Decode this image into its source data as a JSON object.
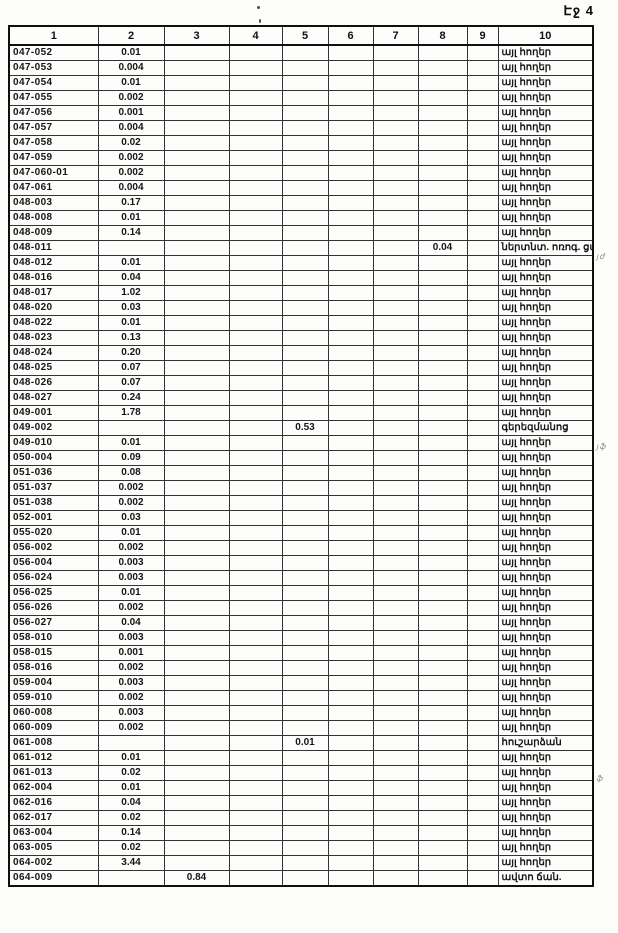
{
  "page": {
    "label": "Էջ 4"
  },
  "table": {
    "headers": [
      "1",
      "2",
      "3",
      "4",
      "5",
      "6",
      "7",
      "8",
      "9",
      "10"
    ],
    "rows": [
      {
        "cells": [
          "047-052",
          "0.01",
          "",
          "",
          "",
          "",
          "",
          "",
          "",
          "այլ հողեր"
        ]
      },
      {
        "cells": [
          "047-053",
          "0.004",
          "",
          "",
          "",
          "",
          "",
          "",
          "",
          "այլ հողեր"
        ]
      },
      {
        "cells": [
          "047-054",
          "0.01",
          "",
          "",
          "",
          "",
          "",
          "",
          "",
          "այլ հողեր"
        ]
      },
      {
        "cells": [
          "047-055",
          "0.002",
          "",
          "",
          "",
          "",
          "",
          "",
          "",
          "այլ հողեր"
        ]
      },
      {
        "cells": [
          "047-056",
          "0.001",
          "",
          "",
          "",
          "",
          "",
          "",
          "",
          "այլ հողեր"
        ]
      },
      {
        "cells": [
          "047-057",
          "0.004",
          "",
          "",
          "",
          "",
          "",
          "",
          "",
          "այլ հողեր"
        ]
      },
      {
        "cells": [
          "047-058",
          "0.02",
          "",
          "",
          "",
          "",
          "",
          "",
          "",
          "այլ հողեր"
        ]
      },
      {
        "cells": [
          "047-059",
          "0.002",
          "",
          "",
          "",
          "",
          "",
          "",
          "",
          "այլ հողեր"
        ]
      },
      {
        "cells": [
          "047-060-01",
          "0.002",
          "",
          "",
          "",
          "",
          "",
          "",
          "",
          "այլ հողեր"
        ]
      },
      {
        "cells": [
          "047-061",
          "0.004",
          "",
          "",
          "",
          "",
          "",
          "",
          "",
          "այլ հողեր"
        ]
      },
      {
        "cells": [
          "048-003",
          "0.17",
          "",
          "",
          "",
          "",
          "",
          "",
          "",
          "այլ հողեր"
        ]
      },
      {
        "cells": [
          "048-008",
          "0.01",
          "",
          "",
          "",
          "",
          "",
          "",
          "",
          "այլ հողեր"
        ]
      },
      {
        "cells": [
          "048-009",
          "0.14",
          "",
          "",
          "",
          "",
          "",
          "",
          "",
          "այլ հողեր"
        ]
      },
      {
        "cells": [
          "048-011",
          "",
          "",
          "",
          "",
          "",
          "",
          "0.04",
          "",
          "ներտնտ. ոռոգ. ցանց"
        ]
      },
      {
        "cells": [
          "048-012",
          "0.01",
          "",
          "",
          "",
          "",
          "",
          "",
          "",
          "այլ հողեր"
        ]
      },
      {
        "cells": [
          "048-016",
          "0.04",
          "",
          "",
          "",
          "",
          "",
          "",
          "",
          "այլ հողեր"
        ]
      },
      {
        "cells": [
          "048-017",
          "1.02",
          "",
          "",
          "",
          "",
          "",
          "",
          "",
          "այլ հողեր"
        ]
      },
      {
        "cells": [
          "048-020",
          "0.03",
          "",
          "",
          "",
          "",
          "",
          "",
          "",
          "այլ հողեր"
        ]
      },
      {
        "cells": [
          "048-022",
          "0.01",
          "",
          "",
          "",
          "",
          "",
          "",
          "",
          "այլ հողեր"
        ]
      },
      {
        "cells": [
          "048-023",
          "0.13",
          "",
          "",
          "",
          "",
          "",
          "",
          "",
          "այլ հողեր"
        ]
      },
      {
        "cells": [
          "048-024",
          "0.20",
          "",
          "",
          "",
          "",
          "",
          "",
          "",
          "այլ հողեր"
        ]
      },
      {
        "cells": [
          "048-025",
          "0.07",
          "",
          "",
          "",
          "",
          "",
          "",
          "",
          "այլ հողեր"
        ]
      },
      {
        "cells": [
          "048-026",
          "0.07",
          "",
          "",
          "",
          "",
          "",
          "",
          "",
          "այլ հողեր"
        ]
      },
      {
        "cells": [
          "048-027",
          "0.24",
          "",
          "",
          "",
          "",
          "",
          "",
          "",
          "այլ հողեր"
        ]
      },
      {
        "cells": [
          "049-001",
          "1.78",
          "",
          "",
          "",
          "",
          "",
          "",
          "",
          "այլ հողեր"
        ]
      },
      {
        "cells": [
          "049-002",
          "",
          "",
          "",
          "0.53",
          "",
          "",
          "",
          "",
          "գերեզմանոց"
        ]
      },
      {
        "cells": [
          "049-010",
          "0.01",
          "",
          "",
          "",
          "",
          "",
          "",
          "",
          "այլ հողեր"
        ]
      },
      {
        "cells": [
          "050-004",
          "0.09",
          "",
          "",
          "",
          "",
          "",
          "",
          "",
          "այլ հողեր"
        ]
      },
      {
        "cells": [
          "051-036",
          "0.08",
          "",
          "",
          "",
          "",
          "",
          "",
          "",
          "այլ հողեր"
        ]
      },
      {
        "cells": [
          "051-037",
          "0.002",
          "",
          "",
          "",
          "",
          "",
          "",
          "",
          "այլ հողեր"
        ]
      },
      {
        "cells": [
          "051-038",
          "0.002",
          "",
          "",
          "",
          "",
          "",
          "",
          "",
          "այլ հողեր"
        ]
      },
      {
        "cells": [
          "052-001",
          "0.03",
          "",
          "",
          "",
          "",
          "",
          "",
          "",
          "այլ հողեր"
        ]
      },
      {
        "cells": [
          "055-020",
          "0.01",
          "",
          "",
          "",
          "",
          "",
          "",
          "",
          "այլ հողեր"
        ]
      },
      {
        "cells": [
          "056-002",
          "0.002",
          "",
          "",
          "",
          "",
          "",
          "",
          "",
          "այլ հողեր"
        ]
      },
      {
        "cells": [
          "056-004",
          "0.003",
          "",
          "",
          "",
          "",
          "",
          "",
          "",
          "այլ հողեր"
        ]
      },
      {
        "cells": [
          "056-024",
          "0.003",
          "",
          "",
          "",
          "",
          "",
          "",
          "",
          "այլ հողեր"
        ]
      },
      {
        "cells": [
          "056-025",
          "0.01",
          "",
          "",
          "",
          "",
          "",
          "",
          "",
          "այլ հողեր"
        ]
      },
      {
        "cells": [
          "056-026",
          "0.002",
          "",
          "",
          "",
          "",
          "",
          "",
          "",
          "այլ հողեր"
        ]
      },
      {
        "cells": [
          "056-027",
          "0.04",
          "",
          "",
          "",
          "",
          "",
          "",
          "",
          "այլ հողեր"
        ]
      },
      {
        "cells": [
          "058-010",
          "0.003",
          "",
          "",
          "",
          "",
          "",
          "",
          "",
          "այլ հողեր"
        ]
      },
      {
        "cells": [
          "058-015",
          "0.001",
          "",
          "",
          "",
          "",
          "",
          "",
          "",
          "այլ հողեր"
        ]
      },
      {
        "cells": [
          "058-016",
          "0.002",
          "",
          "",
          "",
          "",
          "",
          "",
          "",
          "այլ հողեր"
        ]
      },
      {
        "cells": [
          "059-004",
          "0.003",
          "",
          "",
          "",
          "",
          "",
          "",
          "",
          "այլ հողեր"
        ]
      },
      {
        "cells": [
          "059-010",
          "0.002",
          "",
          "",
          "",
          "",
          "",
          "",
          "",
          "այլ հողեր"
        ]
      },
      {
        "cells": [
          "060-008",
          "0.003",
          "",
          "",
          "",
          "",
          "",
          "",
          "",
          "այլ հողեր"
        ]
      },
      {
        "cells": [
          "060-009",
          "0.002",
          "",
          "",
          "",
          "",
          "",
          "",
          "",
          "այլ հողեր"
        ]
      },
      {
        "cells": [
          "061-008",
          "",
          "",
          "",
          "0.01",
          "",
          "",
          "",
          "",
          "հուշարձան"
        ]
      },
      {
        "cells": [
          "061-012",
          "0.01",
          "",
          "",
          "",
          "",
          "",
          "",
          "",
          "այլ հողեր"
        ]
      },
      {
        "cells": [
          "061-013",
          "0.02",
          "",
          "",
          "",
          "",
          "",
          "",
          "",
          "այլ հողեր"
        ]
      },
      {
        "cells": [
          "062-004",
          "0.01",
          "",
          "",
          "",
          "",
          "",
          "",
          "",
          "այլ հողեր"
        ]
      },
      {
        "cells": [
          "062-016",
          "0.04",
          "",
          "",
          "",
          "",
          "",
          "",
          "",
          "այլ հողեր"
        ]
      },
      {
        "cells": [
          "062-017",
          "0.02",
          "",
          "",
          "",
          "",
          "",
          "",
          "",
          "այլ հողեր"
        ]
      },
      {
        "cells": [
          "063-004",
          "0.14",
          "",
          "",
          "",
          "",
          "",
          "",
          "",
          "այլ հողեր"
        ]
      },
      {
        "cells": [
          "063-005",
          "0.02",
          "",
          "",
          "",
          "",
          "",
          "",
          "",
          "այլ հողեր"
        ]
      },
      {
        "cells": [
          "064-002",
          "3.44",
          "",
          "",
          "",
          "",
          "",
          "",
          "",
          "այլ հողեր"
        ]
      },
      {
        "cells": [
          "064-009",
          "",
          "0.84",
          "",
          "",
          "",
          "",
          "",
          "",
          "ավտո ճան."
        ]
      }
    ]
  },
  "margin_marks": [
    {
      "row_index": 13,
      "text": "յժ"
    },
    {
      "row_index": 25,
      "text": "յֆ"
    },
    {
      "row_index": 46,
      "text": "ֆ"
    }
  ]
}
